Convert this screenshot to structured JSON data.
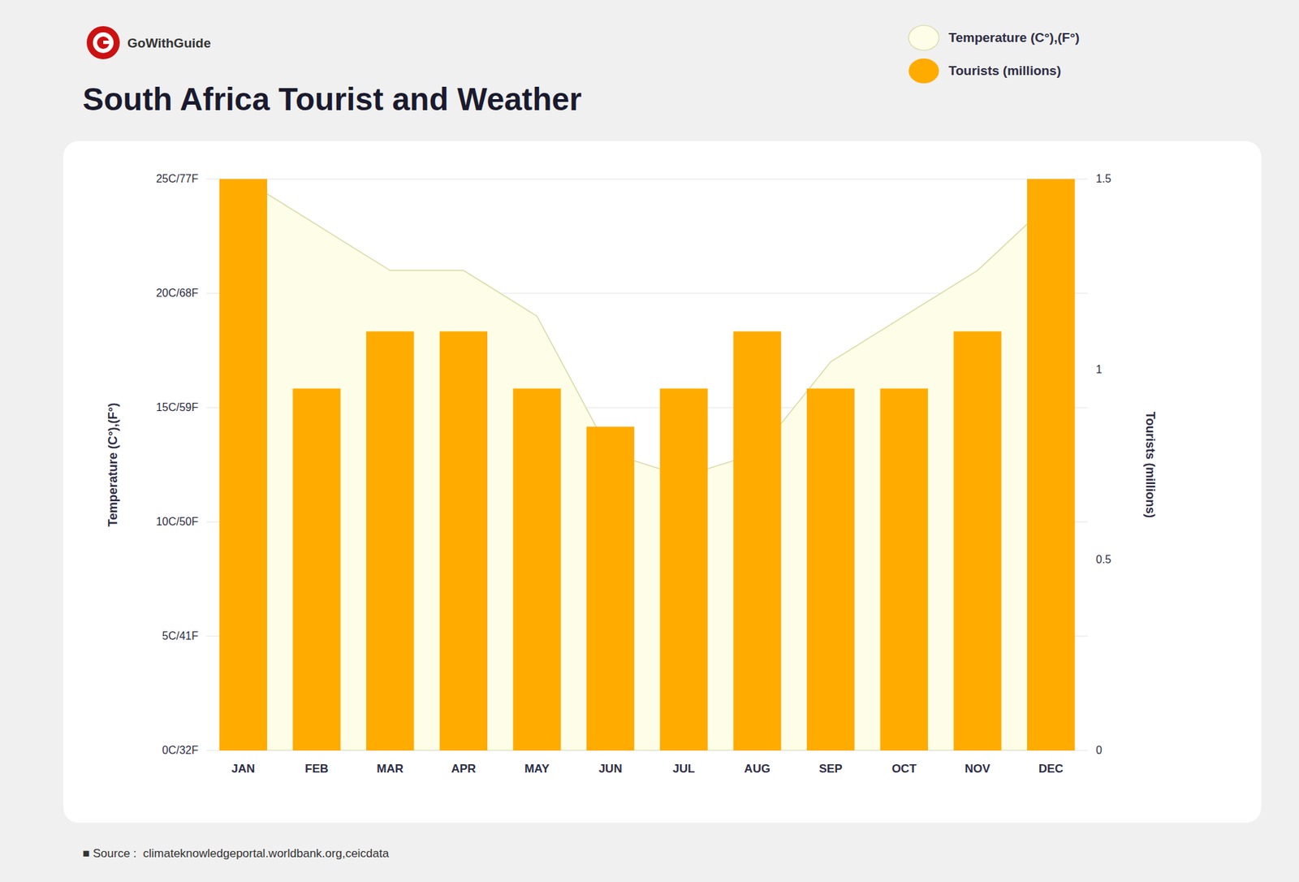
{
  "chart_data": {
    "type": "bar",
    "title": "South Africa Tourist and Weather",
    "categories": [
      "JAN",
      "FEB",
      "MAR",
      "APR",
      "MAY",
      "JUN",
      "JUL",
      "AUG",
      "SEP",
      "OCT",
      "NOV",
      "DEC"
    ],
    "series": [
      {
        "name": "Temperature (C°),(F°)",
        "type": "area",
        "color": "#FEFEE8",
        "values": [
          25,
          23,
          21,
          21,
          19,
          13,
          12,
          13,
          17,
          19,
          21,
          24
        ]
      },
      {
        "name": "Tourists (millions)",
        "type": "bar",
        "color": "#FFAB00",
        "axis": "y2",
        "values": [
          1.5,
          0.95,
          1.1,
          1.1,
          0.95,
          0.85,
          0.95,
          1.1,
          0.95,
          0.95,
          1.1,
          1.5
        ]
      }
    ],
    "ylabel": "Temperature (C°),(F°)",
    "y2label": "Tourists (millions)",
    "ylim": [
      0,
      25
    ],
    "yticks": [
      {
        "value": 0,
        "label": "0C/32F"
      },
      {
        "value": 5,
        "label": "5C/41F"
      },
      {
        "value": 10,
        "label": "10C/50F"
      },
      {
        "value": 15,
        "label": "15C/59F"
      },
      {
        "value": 20,
        "label": "20C/68F"
      },
      {
        "value": 25,
        "label": "25C/77F"
      }
    ],
    "y2lim": [
      0,
      1.5
    ],
    "y2ticks": [
      0,
      0.5,
      1,
      1.5
    ],
    "grid": true,
    "legend": "upper right",
    "annotations": [
      "GoWithGuide",
      "■ Source :  climateknowledgeportal.worldbank.org,ceicdata"
    ]
  }
}
